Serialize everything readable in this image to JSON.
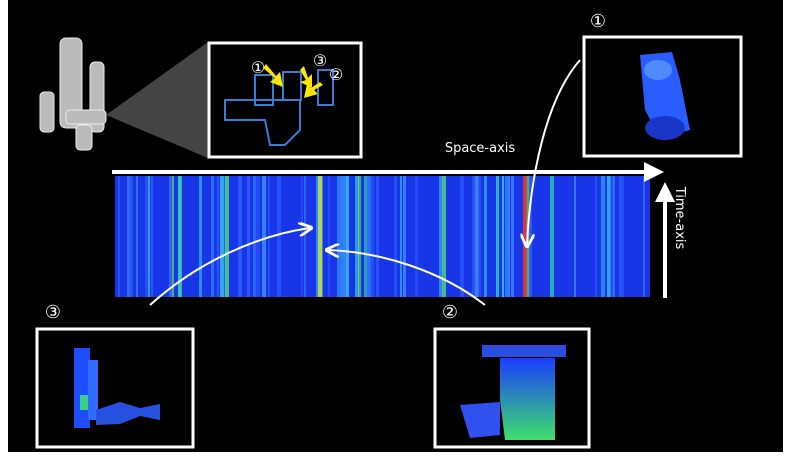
{
  "callouts": {
    "top_right": "①",
    "bottom_left": "③",
    "bottom_right": "②"
  },
  "inset_markers": [
    "①",
    "③",
    "②"
  ],
  "axes": {
    "space": "Space-axis",
    "time": "Time-axis"
  }
}
